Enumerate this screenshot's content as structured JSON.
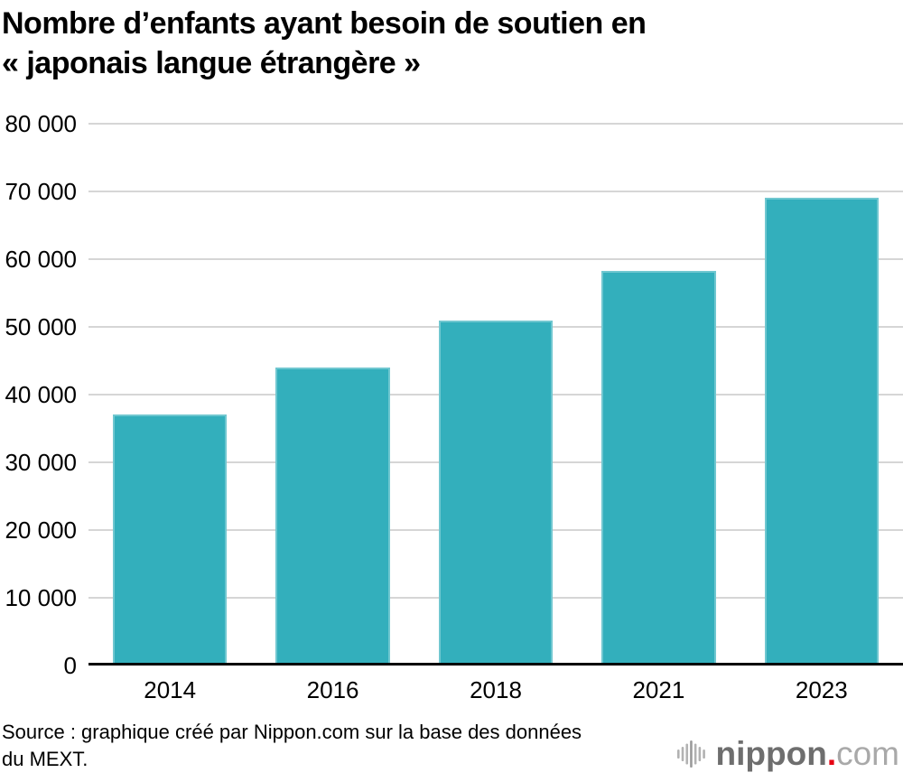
{
  "header": {
    "title_line1": "Nombre d’enfants ayant besoin de soutien en",
    "title_line2": "« japonais langue étrangère »"
  },
  "chart_data": {
    "type": "bar",
    "title": "Nombre d’enfants ayant besoin de soutien en « japonais langue étrangère »",
    "categories": [
      "2014",
      "2016",
      "2018",
      "2021",
      "2023"
    ],
    "values": [
      37100,
      44000,
      51000,
      58300,
      69100
    ],
    "xlabel": "",
    "ylabel": "",
    "ylim": [
      0,
      80000
    ],
    "ytick_step": 10000,
    "ytick_labels": [
      "0",
      "10 000",
      "20 000",
      "30 000",
      "40 000",
      "50 000",
      "60 000",
      "70 000",
      "80 000"
    ],
    "grid": true,
    "legend": "none",
    "bar_color": "#33afbc",
    "gridline_color": "#d6d6d6",
    "axis_color": "#000000",
    "bar_width_ratio": 0.7
  },
  "source": {
    "line1": "Source : graphique créé par Nippon.com sur la base des données",
    "line2": "du MEXT."
  },
  "logo": {
    "name": "nippon",
    "dot": ".",
    "tld": "com",
    "icon": "sound-wave-icon",
    "colors": {
      "name": "#6e6e6e",
      "dot": "#e60012",
      "tld": "#a9a9a9",
      "wave": "#b2b2b2",
      "wave_center": "#9a9a9a"
    },
    "wave_bar_heights": [
      10,
      16,
      23,
      30,
      23,
      16,
      10
    ]
  }
}
